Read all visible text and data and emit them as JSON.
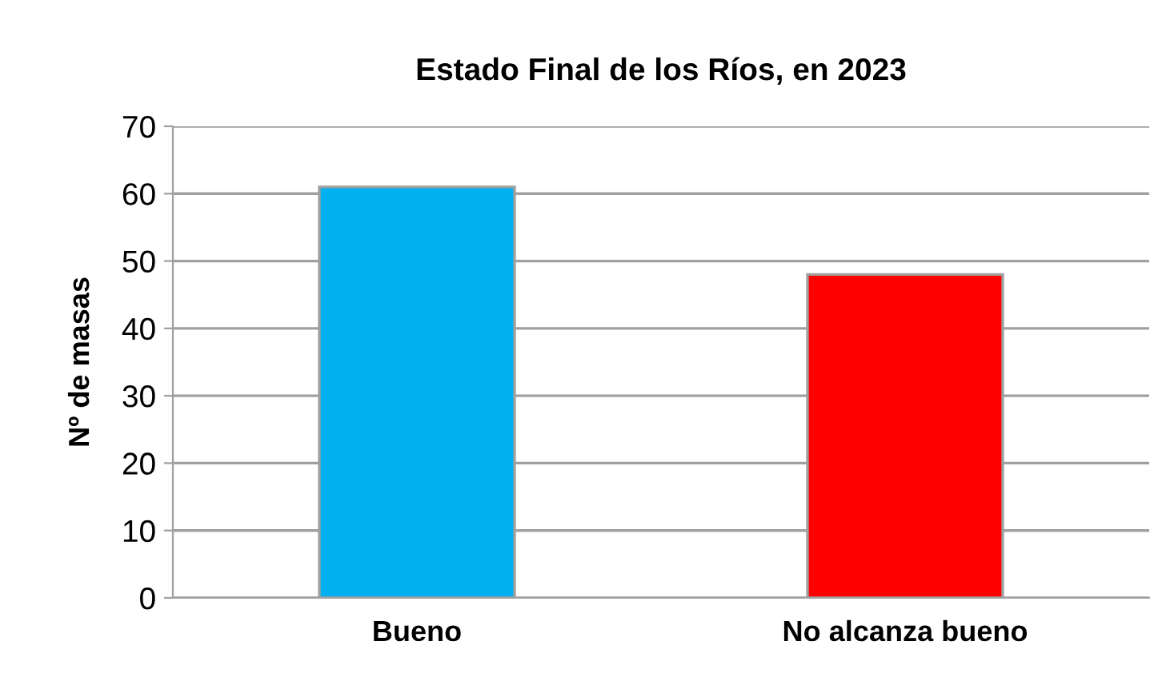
{
  "chart_data": {
    "type": "bar",
    "title": "Estado Final de los Ríos, en 2023",
    "ylabel": "Nº de masas",
    "categories": [
      "Bueno",
      "No alcanza bueno"
    ],
    "values": [
      61,
      48
    ],
    "colors": [
      "#00b0f0",
      "#ff0000"
    ],
    "ylim": [
      0,
      70
    ],
    "yticks": [
      0,
      10,
      20,
      30,
      40,
      50,
      60,
      70
    ],
    "grid": "y",
    "legend": false
  }
}
